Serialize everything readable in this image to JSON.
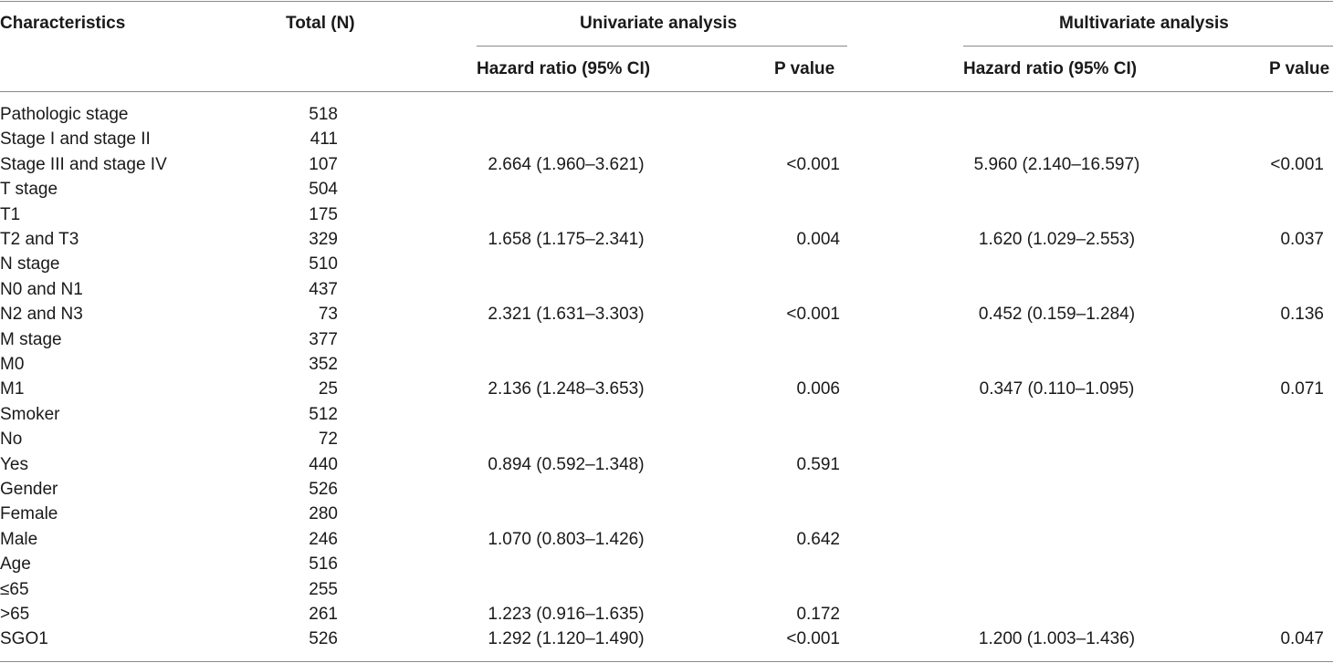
{
  "header": {
    "characteristics": "Characteristics",
    "total": "Total (N)",
    "univariate": "Univariate analysis",
    "multivariate": "Multivariate analysis",
    "uni_hr": "Hazard ratio (95% CI)",
    "uni_p": "P value",
    "multi_hr": "Hazard ratio (95% CI)",
    "multi_p": "P value"
  },
  "rows": [
    {
      "characteristic": "Pathologic stage",
      "total": "518",
      "uni_hr": "",
      "uni_p": "",
      "multi_hr": "",
      "multi_p": ""
    },
    {
      "characteristic": "Stage I and stage II",
      "total": "411",
      "uni_hr": "",
      "uni_p": "",
      "multi_hr": "",
      "multi_p": ""
    },
    {
      "characteristic": "Stage III and stage IV",
      "total": "107",
      "uni_hr": "2.664 (1.960–3.621)",
      "uni_p": "<0.001",
      "multi_hr": "5.960 (2.140–16.597)",
      "multi_p": "<0.001"
    },
    {
      "characteristic": "T stage",
      "total": "504",
      "uni_hr": "",
      "uni_p": "",
      "multi_hr": "",
      "multi_p": ""
    },
    {
      "characteristic": "T1",
      "total": "175",
      "uni_hr": "",
      "uni_p": "",
      "multi_hr": "",
      "multi_p": ""
    },
    {
      "characteristic": "T2 and T3",
      "total": "329",
      "uni_hr": "1.658 (1.175–2.341)",
      "uni_p": "0.004",
      "multi_hr": "1.620 (1.029–2.553)",
      "multi_p": "0.037"
    },
    {
      "characteristic": "N stage",
      "total": "510",
      "uni_hr": "",
      "uni_p": "",
      "multi_hr": "",
      "multi_p": ""
    },
    {
      "characteristic": "N0 and N1",
      "total": "437",
      "uni_hr": "",
      "uni_p": "",
      "multi_hr": "",
      "multi_p": ""
    },
    {
      "characteristic": "N2 and N3",
      "total": "73",
      "uni_hr": "2.321 (1.631–3.303)",
      "uni_p": "<0.001",
      "multi_hr": "0.452 (0.159–1.284)",
      "multi_p": "0.136"
    },
    {
      "characteristic": "M stage",
      "total": "377",
      "uni_hr": "",
      "uni_p": "",
      "multi_hr": "",
      "multi_p": ""
    },
    {
      "characteristic": "M0",
      "total": "352",
      "uni_hr": "",
      "uni_p": "",
      "multi_hr": "",
      "multi_p": ""
    },
    {
      "characteristic": "M1",
      "total": "25",
      "uni_hr": "2.136 (1.248–3.653)",
      "uni_p": "0.006",
      "multi_hr": "0.347 (0.110–1.095)",
      "multi_p": "0.071"
    },
    {
      "characteristic": "Smoker",
      "total": "512",
      "uni_hr": "",
      "uni_p": "",
      "multi_hr": "",
      "multi_p": ""
    },
    {
      "characteristic": "No",
      "total": "72",
      "uni_hr": "",
      "uni_p": "",
      "multi_hr": "",
      "multi_p": ""
    },
    {
      "characteristic": "Yes",
      "total": "440",
      "uni_hr": "0.894 (0.592–1.348)",
      "uni_p": "0.591",
      "multi_hr": "",
      "multi_p": ""
    },
    {
      "characteristic": "Gender",
      "total": "526",
      "uni_hr": "",
      "uni_p": "",
      "multi_hr": "",
      "multi_p": ""
    },
    {
      "characteristic": "Female",
      "total": "280",
      "uni_hr": "",
      "uni_p": "",
      "multi_hr": "",
      "multi_p": ""
    },
    {
      "characteristic": "Male",
      "total": "246",
      "uni_hr": "1.070 (0.803–1.426)",
      "uni_p": "0.642",
      "multi_hr": "",
      "multi_p": ""
    },
    {
      "characteristic": "Age",
      "total": "516",
      "uni_hr": "",
      "uni_p": "",
      "multi_hr": "",
      "multi_p": ""
    },
    {
      "characteristic": "≤65",
      "total": "255",
      "uni_hr": "",
      "uni_p": "",
      "multi_hr": "",
      "multi_p": ""
    },
    {
      "characteristic": ">65",
      "total": "261",
      "uni_hr": "1.223 (0.916–1.635)",
      "uni_p": "0.172",
      "multi_hr": "",
      "multi_p": ""
    },
    {
      "characteristic": "SGO1",
      "total": "526",
      "uni_hr": "1.292 (1.120–1.490)",
      "uni_p": "<0.001",
      "multi_hr": "1.200 (1.003–1.436)",
      "multi_p": "0.047"
    }
  ]
}
